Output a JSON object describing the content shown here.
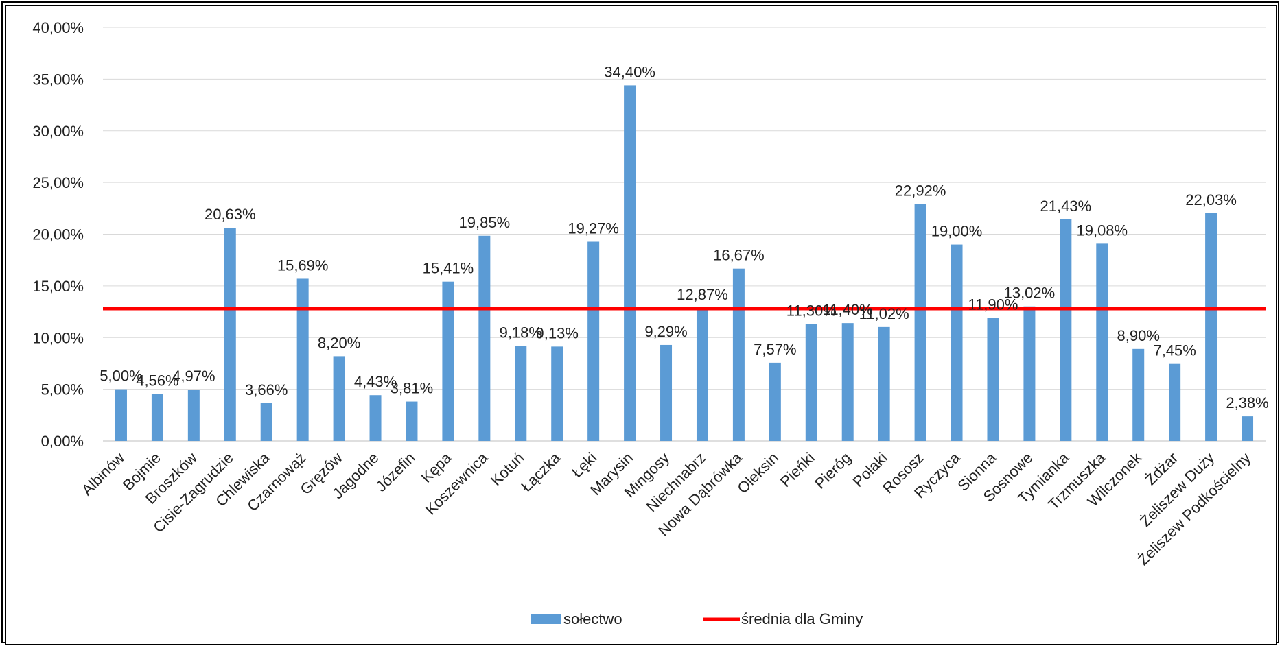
{
  "chart_data": {
    "type": "bar",
    "categories": [
      "Albinów",
      "Bojmie",
      "Broszków",
      "Cisie-Zagrudzie",
      "Chlewiska",
      "Czarnowąż",
      "Gręzów",
      "Jagodne",
      "Józefin",
      "Kępa",
      "Koszewnica",
      "Kotuń",
      "Łączka",
      "Łęki",
      "Marysin",
      "Mingosy",
      "Niechnabrz",
      "Nowa Dąbrówka",
      "Oleksin",
      "Pieńki",
      "Pieróg",
      "Polaki",
      "Rososz",
      "Ryczyca",
      "Sionna",
      "Sosnowe",
      "Tymianka",
      "Trzmuszka",
      "Wilczonek",
      "Żdżar",
      "Żeliszew Duży",
      "Żeliszew Podkościelny"
    ],
    "series": [
      {
        "name": "sołectwo",
        "color": "#5b9bd5",
        "values": [
          5.0,
          4.56,
          4.97,
          20.63,
          3.66,
          15.69,
          8.2,
          4.43,
          3.81,
          15.41,
          19.85,
          9.18,
          9.13,
          19.27,
          34.4,
          9.29,
          12.87,
          16.67,
          7.57,
          11.3,
          11.4,
          11.02,
          22.92,
          19.0,
          11.9,
          13.02,
          21.43,
          19.08,
          8.9,
          7.45,
          22.03,
          2.38
        ],
        "labels": [
          "5,00%",
          "4,56%",
          "4,97%",
          "20,63%",
          "3,66%",
          "15,69%",
          "8,20%",
          "4,43%",
          "3,81%",
          "15,41%",
          "19,85%",
          "9,18%",
          "9,13%",
          "19,27%",
          "34,40%",
          "9,29%",
          "12,87%",
          "16,67%",
          "7,57%",
          "11,30%",
          "11,40%",
          "11,02%",
          "22,92%",
          "19,00%",
          "11,90%",
          "13,02%",
          "21,43%",
          "19,08%",
          "8,90%",
          "7,45%",
          "22,03%",
          "2,38%"
        ]
      },
      {
        "name": "średnia dla Gminy",
        "type": "line",
        "color": "#ff0000",
        "value": 12.8
      }
    ],
    "yticks": [
      "0,00%",
      "5,00%",
      "10,00%",
      "15,00%",
      "20,00%",
      "25,00%",
      "30,00%",
      "35,00%",
      "40,00%"
    ],
    "ylim": [
      0,
      40
    ],
    "grid": true,
    "legend_position": "bottom"
  }
}
